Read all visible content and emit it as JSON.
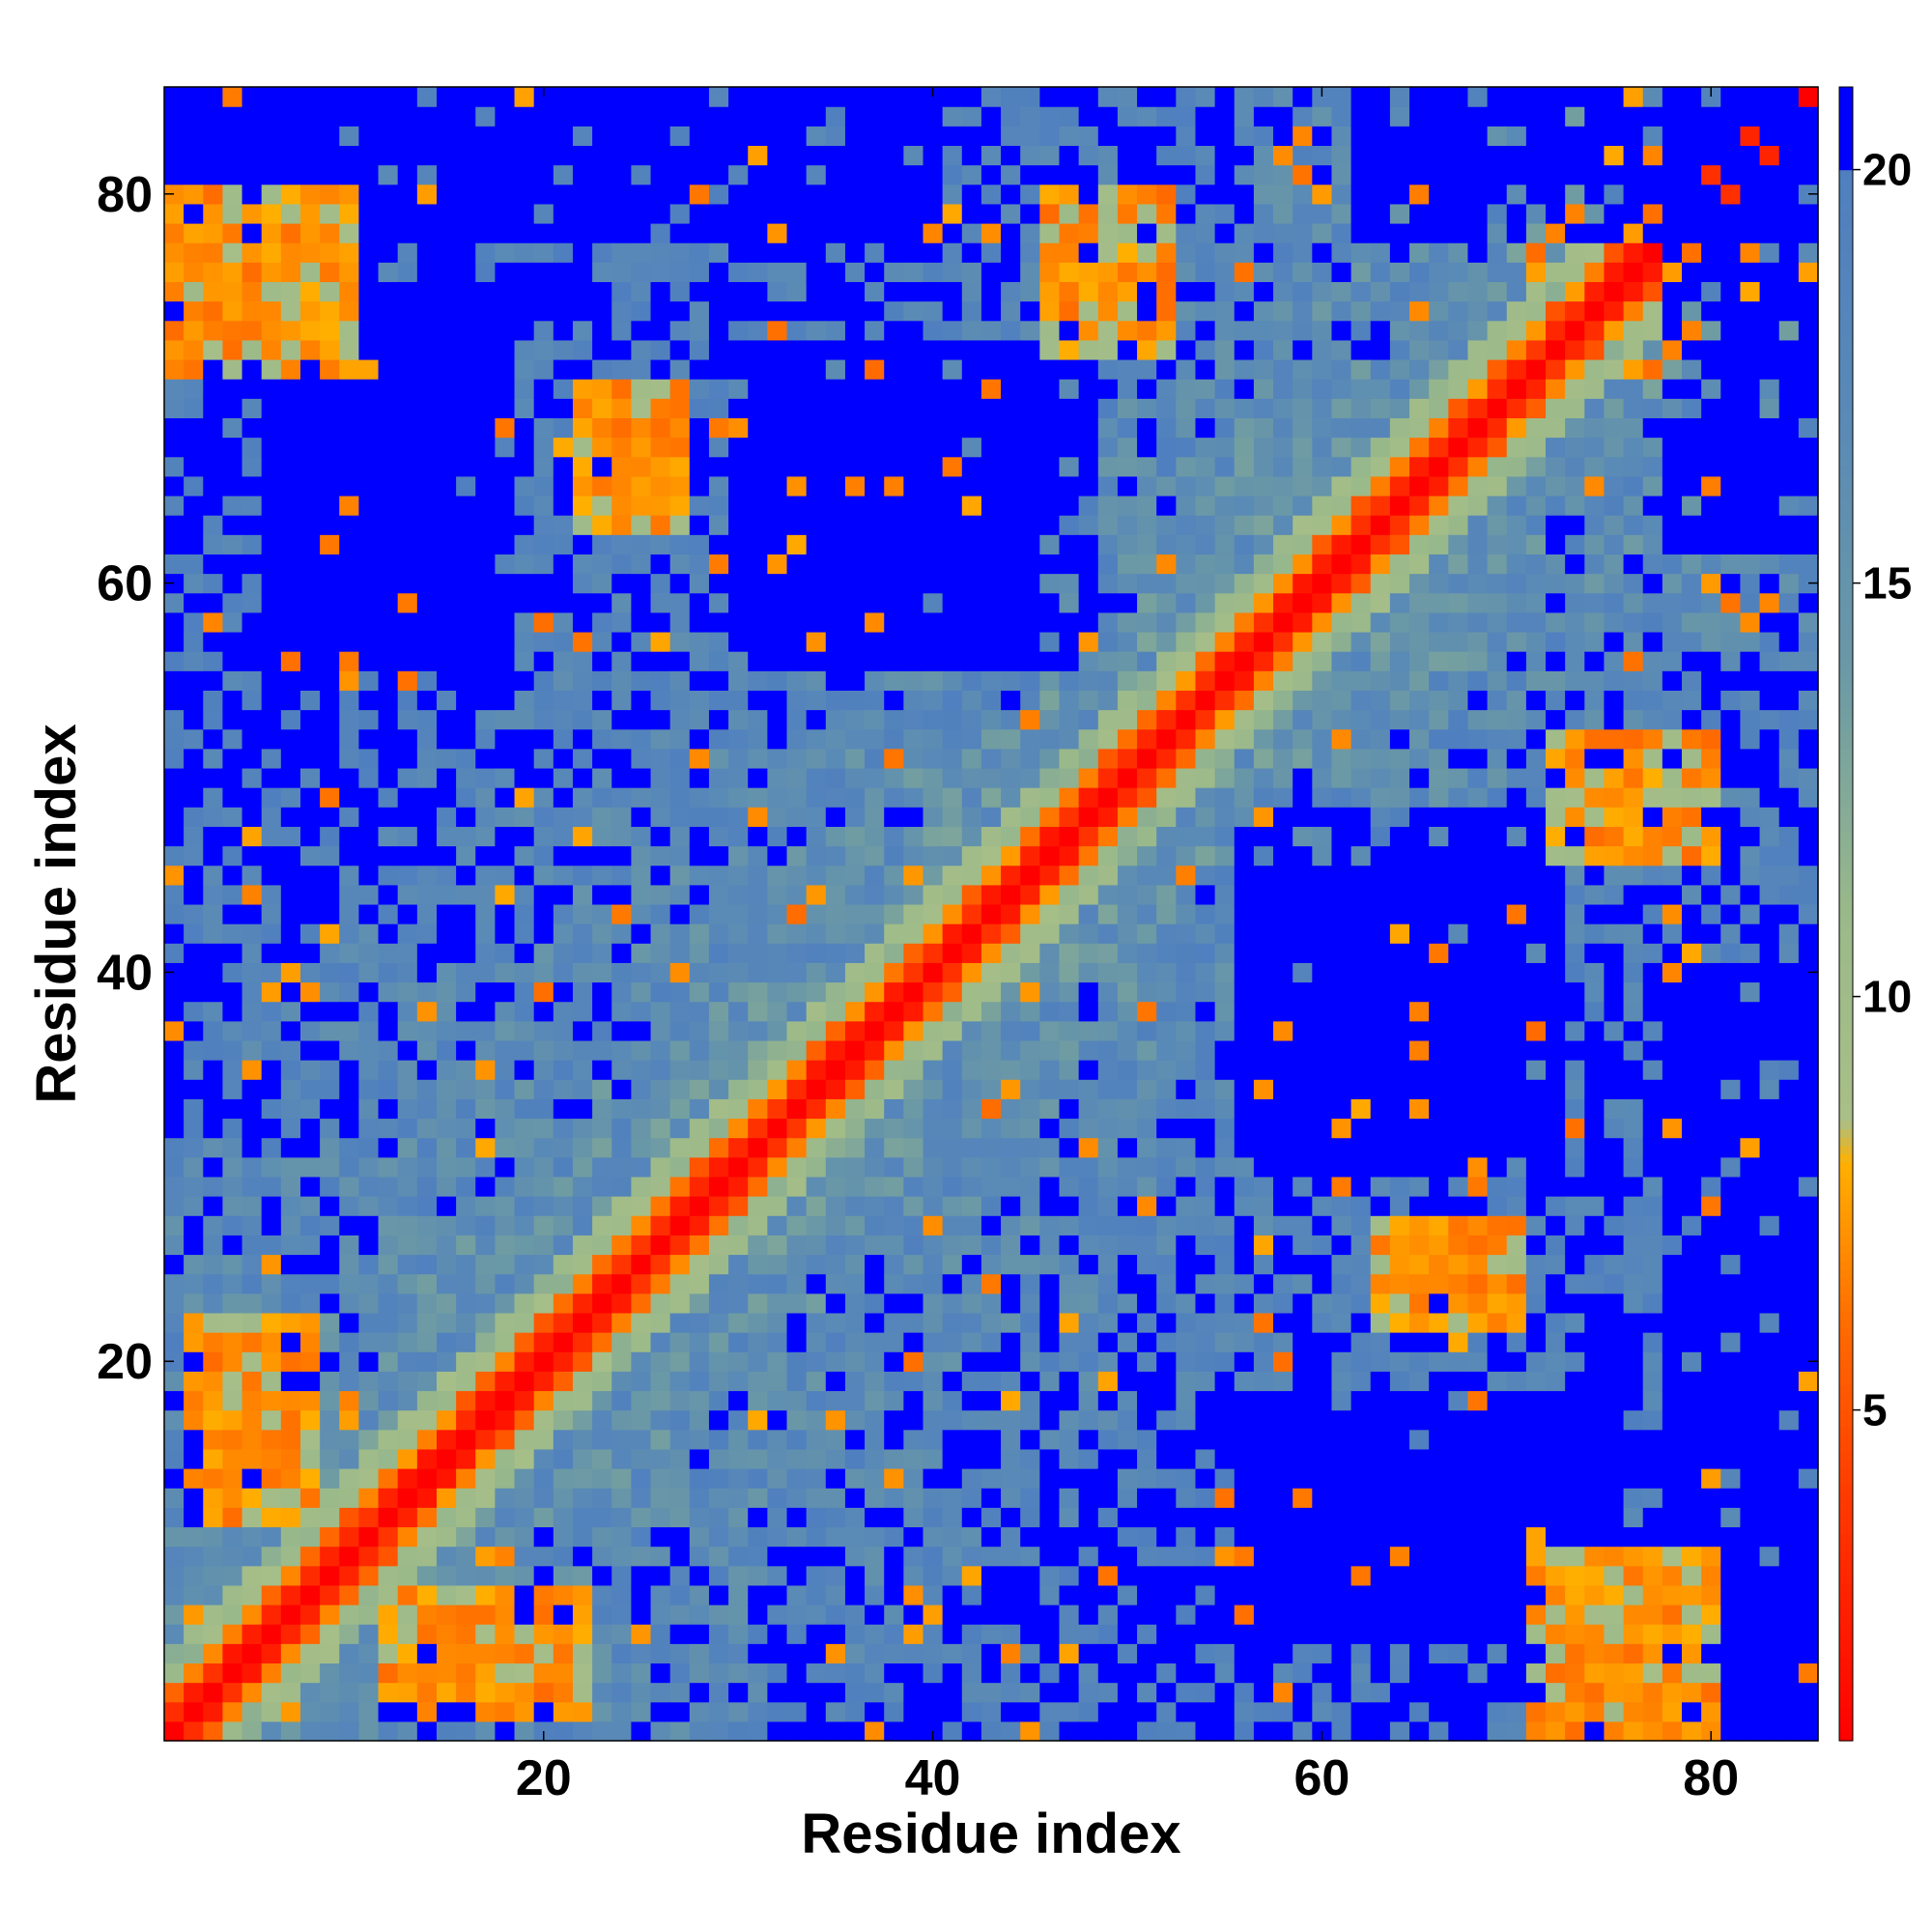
{
  "chart_data": {
    "type": "heatmap",
    "title": "",
    "xlabel": "Residue index",
    "ylabel": "Residue index",
    "n_residues": 85,
    "xlim": [
      1,
      85
    ],
    "ylim": [
      1,
      85
    ],
    "x_ticks": [
      20,
      40,
      60,
      80
    ],
    "y_ticks": [
      20,
      40,
      60,
      80
    ],
    "x_tick_labels": [
      "20",
      "40",
      "60",
      "80"
    ],
    "y_tick_labels": [
      "20",
      "40",
      "60",
      "80"
    ],
    "value_unit": "distance",
    "value_range": [
      1,
      21
    ],
    "colorbar": {
      "ticks": [
        5,
        10,
        15,
        20
      ],
      "tick_labels": [
        "5",
        "10",
        "15",
        "20"
      ],
      "saturation_value": 20,
      "saturation_color": "#0000ff",
      "stops": [
        {
          "v": 1,
          "color": "#ff0000"
        },
        {
          "v": 4,
          "color": "#ff3b00"
        },
        {
          "v": 6,
          "color": "#ff6a00"
        },
        {
          "v": 8,
          "color": "#ffb000"
        },
        {
          "v": 8.5,
          "color": "#a9bf87"
        },
        {
          "v": 11,
          "color": "#9ab98a"
        },
        {
          "v": 14,
          "color": "#6a98a6"
        },
        {
          "v": 17,
          "color": "#5a8ab6"
        },
        {
          "v": 20,
          "color": "#4f7fbf"
        }
      ]
    },
    "pattern": {
      "main_diagonal": "near-zero distances along i = j (red), orange band for |i-j| <= 2",
      "contact_regions": [
        {
          "i_range": [
            1,
            10
          ],
          "j_range": [
            71,
            80
          ],
          "min_value": 6
        },
        {
          "i_range": [
            22,
            27
          ],
          "j_range": [
            63,
            70
          ],
          "min_value": 6
        },
        {
          "i_range": [
            46,
            52
          ],
          "j_range": [
            72,
            80
          ],
          "min_value": 6
        },
        {
          "i_range": [
            73,
            80
          ],
          "j_range": [
            46,
            52
          ],
          "min_value": 6
        },
        {
          "i_range": [
            2,
            8
          ],
          "j_range": [
            12,
            22
          ],
          "min_value": 6
        },
        {
          "i_range": [
            12,
            22
          ],
          "j_range": [
            2,
            8
          ],
          "min_value": 6
        },
        {
          "i_range": [
            64,
            69
          ],
          "j_range": [
            22,
            27
          ],
          "min_value": 6
        },
        {
          "i_range": [
            71,
            78
          ],
          "j_range": [
            1,
            10
          ],
          "min_value": 6
        }
      ],
      "far_regions": [
        {
          "i_range": [
            6,
            17
          ],
          "j_range": [
            58,
            72
          ],
          "value": 21
        },
        {
          "i_range": [
            30,
            48
          ],
          "j_range": [
            56,
            72
          ],
          "value": 21
        },
        {
          "i_range": [
            56,
            75
          ],
          "j_range": [
            6,
            18
          ],
          "value": 21
        },
        {
          "i_range": [
            57,
            70
          ],
          "j_range": [
            30,
            45
          ],
          "value": 21
        },
        {
          "i_range": [
            62,
            84
          ],
          "j_range": [
            78,
            85
          ],
          "value": 21
        },
        {
          "i_range": [
            78,
            85
          ],
          "j_range": [
            1,
            40
          ],
          "value": 21
        },
        {
          "i_range": [
            1,
            6
          ],
          "j_range": [
            78,
            85
          ],
          "value": 21
        }
      ]
    }
  }
}
